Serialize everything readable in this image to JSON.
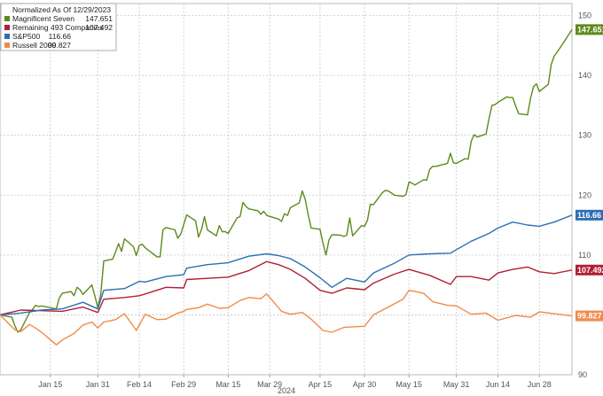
{
  "chart_data": {
    "type": "line",
    "legend": {
      "title": "Normalized As Of 12/29/2023",
      "placement": "top-left",
      "entries": [
        {
          "name": "Magnificent Seven",
          "value": "147.651"
        },
        {
          "name": "Remaining 493 Companies",
          "value": "107.492"
        },
        {
          "name": "S&P500",
          "value": "116.66"
        },
        {
          "name": "Russell 2000",
          "value": "99.827"
        }
      ]
    },
    "xlabel": "2024",
    "x_tick_labels": [
      "Jan 15",
      "Jan 31",
      "Feb 14",
      "Feb 29",
      "Mar 15",
      "Mar 29",
      "Apr 15",
      "Apr 30",
      "May 15",
      "May 31",
      "Jun 14",
      "Jun 28"
    ],
    "xlim": [
      "2023-12-29",
      "2024-07-09"
    ],
    "ylim": [
      90,
      152
    ],
    "y_ticks": [
      90,
      100,
      110,
      120,
      130,
      140,
      150
    ],
    "y_axis_side": "right",
    "grid": true,
    "series": [
      {
        "name": "Magnificent Seven",
        "color": "#5d8a1c",
        "end_label": "147.651",
        "points": [
          [
            "2023-12-29",
            100
          ],
          [
            "2024-01-02",
            99.6
          ],
          [
            "2024-01-03",
            98.2
          ],
          [
            "2024-01-04",
            97.1
          ],
          [
            "2024-01-05",
            97.5
          ],
          [
            "2024-01-08",
            100.4
          ],
          [
            "2024-01-09",
            100.9
          ],
          [
            "2024-01-10",
            101.6
          ],
          [
            "2024-01-11",
            101.4
          ],
          [
            "2024-01-12",
            101.5
          ],
          [
            "2024-01-16",
            101.1
          ],
          [
            "2024-01-17",
            101.0
          ],
          [
            "2024-01-18",
            102.8
          ],
          [
            "2024-01-19",
            103.6
          ],
          [
            "2024-01-22",
            103.9
          ],
          [
            "2024-01-23",
            103.2
          ],
          [
            "2024-01-24",
            104.6
          ],
          [
            "2024-01-25",
            104.2
          ],
          [
            "2024-01-26",
            103.4
          ],
          [
            "2024-01-29",
            105.0
          ],
          [
            "2024-01-30",
            103.2
          ],
          [
            "2024-01-31",
            101.2
          ],
          [
            "2024-02-01",
            103.4
          ],
          [
            "2024-02-02",
            109.0
          ],
          [
            "2024-02-05",
            109.3
          ],
          [
            "2024-02-06",
            110.5
          ],
          [
            "2024-02-07",
            111.9
          ],
          [
            "2024-02-08",
            110.6
          ],
          [
            "2024-02-09",
            112.7
          ],
          [
            "2024-02-12",
            111.4
          ],
          [
            "2024-02-13",
            109.9
          ],
          [
            "2024-02-14",
            111.6
          ],
          [
            "2024-02-15",
            111.8
          ],
          [
            "2024-02-16",
            111.2
          ],
          [
            "2024-02-20",
            109.7
          ],
          [
            "2024-02-21",
            109.7
          ],
          [
            "2024-02-22",
            114.2
          ],
          [
            "2024-02-23",
            114.6
          ],
          [
            "2024-02-26",
            114.2
          ],
          [
            "2024-02-27",
            112.8
          ],
          [
            "2024-02-28",
            113.5
          ],
          [
            "2024-02-29",
            115.1
          ],
          [
            "2024-03-01",
            116.7
          ],
          [
            "2024-03-04",
            115.7
          ],
          [
            "2024-03-05",
            113.0
          ],
          [
            "2024-03-06",
            114.3
          ],
          [
            "2024-03-07",
            116.4
          ],
          [
            "2024-03-08",
            114.2
          ],
          [
            "2024-03-11",
            113.2
          ],
          [
            "2024-03-12",
            114.9
          ],
          [
            "2024-03-13",
            113.9
          ],
          [
            "2024-03-14",
            113.9
          ],
          [
            "2024-03-15",
            113.6
          ],
          [
            "2024-03-18",
            116.2
          ],
          [
            "2024-03-19",
            116.4
          ],
          [
            "2024-03-20",
            118.8
          ],
          [
            "2024-03-21",
            118.1
          ],
          [
            "2024-03-22",
            117.7
          ],
          [
            "2024-03-25",
            117.4
          ],
          [
            "2024-03-26",
            116.8
          ],
          [
            "2024-03-27",
            117.3
          ],
          [
            "2024-03-28",
            116.6
          ],
          [
            "2024-04-01",
            116.0
          ],
          [
            "2024-04-02",
            115.6
          ],
          [
            "2024-04-03",
            116.9
          ],
          [
            "2024-04-04",
            116.6
          ],
          [
            "2024-04-05",
            117.9
          ],
          [
            "2024-04-08",
            118.7
          ],
          [
            "2024-04-09",
            120.7
          ],
          [
            "2024-04-10",
            119.3
          ],
          [
            "2024-04-11",
            116.7
          ],
          [
            "2024-04-12",
            114.5
          ],
          [
            "2024-04-15",
            114.3
          ],
          [
            "2024-04-16",
            111.9
          ],
          [
            "2024-04-17",
            110.0
          ],
          [
            "2024-04-18",
            112.5
          ],
          [
            "2024-04-19",
            113.4
          ],
          [
            "2024-04-22",
            113.3
          ],
          [
            "2024-04-23",
            113.1
          ],
          [
            "2024-04-24",
            113.3
          ],
          [
            "2024-04-25",
            116.2
          ],
          [
            "2024-04-26",
            113.2
          ],
          [
            "2024-04-29",
            114.9
          ],
          [
            "2024-04-30",
            114.8
          ],
          [
            "2024-05-01",
            115.8
          ],
          [
            "2024-05-02",
            118.5
          ],
          [
            "2024-05-03",
            118.4
          ],
          [
            "2024-05-06",
            120.4
          ],
          [
            "2024-05-07",
            120.8
          ],
          [
            "2024-05-08",
            120.7
          ],
          [
            "2024-05-09",
            120.4
          ],
          [
            "2024-05-10",
            120.0
          ],
          [
            "2024-05-13",
            119.8
          ],
          [
            "2024-05-14",
            120.1
          ],
          [
            "2024-05-15",
            122.2
          ],
          [
            "2024-05-16",
            122.0
          ],
          [
            "2024-05-17",
            121.7
          ],
          [
            "2024-05-20",
            122.6
          ],
          [
            "2024-05-21",
            122.5
          ],
          [
            "2024-05-22",
            124.3
          ],
          [
            "2024-05-23",
            124.8
          ],
          [
            "2024-05-24",
            124.8
          ],
          [
            "2024-05-28",
            125.3
          ],
          [
            "2024-05-29",
            127.0
          ],
          [
            "2024-05-30",
            125.4
          ],
          [
            "2024-05-31",
            125.3
          ],
          [
            "2024-06-03",
            126.1
          ],
          [
            "2024-06-04",
            126.0
          ],
          [
            "2024-06-05",
            129.0
          ],
          [
            "2024-06-06",
            130.1
          ],
          [
            "2024-06-07",
            129.7
          ],
          [
            "2024-06-10",
            130.2
          ],
          [
            "2024-06-11",
            132.7
          ],
          [
            "2024-06-12",
            135.0
          ],
          [
            "2024-06-13",
            135.1
          ],
          [
            "2024-06-14",
            135.5
          ],
          [
            "2024-06-17",
            136.4
          ],
          [
            "2024-06-18",
            136.3
          ],
          [
            "2024-06-19",
            136.3
          ],
          [
            "2024-06-20",
            134.9
          ],
          [
            "2024-06-21",
            133.6
          ],
          [
            "2024-06-24",
            133.4
          ],
          [
            "2024-06-25",
            136.1
          ],
          [
            "2024-06-26",
            138.1
          ],
          [
            "2024-06-27",
            138.6
          ],
          [
            "2024-06-28",
            137.3
          ],
          [
            "2024-07-01",
            138.5
          ],
          [
            "2024-07-02",
            141.8
          ],
          [
            "2024-07-03",
            143.2
          ],
          [
            "2024-07-05",
            144.6
          ],
          [
            "2024-07-08",
            146.9
          ],
          [
            "2024-07-09",
            147.651
          ]
        ]
      },
      {
        "name": "Remaining 493 Companies",
        "color": "#b01f35",
        "end_label": "107.492",
        "points": [
          [
            "2023-12-29",
            100
          ],
          [
            "2024-01-05",
            100.8
          ],
          [
            "2024-01-12",
            100.7
          ],
          [
            "2024-01-19",
            100.6
          ],
          [
            "2024-01-26",
            101.3
          ],
          [
            "2024-01-31",
            100.4
          ],
          [
            "2024-02-02",
            102.6
          ],
          [
            "2024-02-09",
            102.9
          ],
          [
            "2024-02-14",
            103.2
          ],
          [
            "2024-02-16",
            103.5
          ],
          [
            "2024-02-23",
            104.6
          ],
          [
            "2024-02-29",
            104.5
          ],
          [
            "2024-03-01",
            105.9
          ],
          [
            "2024-03-08",
            106.1
          ],
          [
            "2024-03-15",
            106.3
          ],
          [
            "2024-03-22",
            107.4
          ],
          [
            "2024-03-28",
            108.9
          ],
          [
            "2024-04-01",
            108.4
          ],
          [
            "2024-04-05",
            107.6
          ],
          [
            "2024-04-10",
            106.1
          ],
          [
            "2024-04-15",
            104.1
          ],
          [
            "2024-04-19",
            103.6
          ],
          [
            "2024-04-24",
            104.5
          ],
          [
            "2024-04-30",
            104.2
          ],
          [
            "2024-05-03",
            105.3
          ],
          [
            "2024-05-10",
            106.8
          ],
          [
            "2024-05-15",
            107.6
          ],
          [
            "2024-05-22",
            106.6
          ],
          [
            "2024-05-29",
            105.1
          ],
          [
            "2024-05-31",
            106.4
          ],
          [
            "2024-06-05",
            106.4
          ],
          [
            "2024-06-11",
            105.8
          ],
          [
            "2024-06-14",
            107.0
          ],
          [
            "2024-06-19",
            107.6
          ],
          [
            "2024-06-24",
            108.0
          ],
          [
            "2024-06-28",
            107.2
          ],
          [
            "2024-07-03",
            106.9
          ],
          [
            "2024-07-09",
            107.492
          ]
        ]
      },
      {
        "name": "S&P500",
        "color": "#2e6fb3",
        "end_label": "116.66",
        "points": [
          [
            "2023-12-29",
            100
          ],
          [
            "2024-01-05",
            100.3
          ],
          [
            "2024-01-12",
            100.8
          ],
          [
            "2024-01-19",
            101.0
          ],
          [
            "2024-01-26",
            102.1
          ],
          [
            "2024-01-31",
            101.0
          ],
          [
            "2024-02-02",
            104.1
          ],
          [
            "2024-02-09",
            104.4
          ],
          [
            "2024-02-14",
            105.6
          ],
          [
            "2024-02-16",
            105.5
          ],
          [
            "2024-02-23",
            106.4
          ],
          [
            "2024-02-29",
            106.7
          ],
          [
            "2024-03-01",
            107.8
          ],
          [
            "2024-03-08",
            108.4
          ],
          [
            "2024-03-15",
            108.7
          ],
          [
            "2024-03-22",
            109.8
          ],
          [
            "2024-03-28",
            110.2
          ],
          [
            "2024-04-01",
            109.9
          ],
          [
            "2024-04-05",
            109.4
          ],
          [
            "2024-04-10",
            108.0
          ],
          [
            "2024-04-15",
            106.2
          ],
          [
            "2024-04-19",
            104.6
          ],
          [
            "2024-04-24",
            106.1
          ],
          [
            "2024-04-30",
            105.5
          ],
          [
            "2024-05-03",
            107.0
          ],
          [
            "2024-05-10",
            108.6
          ],
          [
            "2024-05-15",
            110.0
          ],
          [
            "2024-05-22",
            110.2
          ],
          [
            "2024-05-29",
            110.3
          ],
          [
            "2024-05-31",
            110.9
          ],
          [
            "2024-06-05",
            112.3
          ],
          [
            "2024-06-11",
            113.6
          ],
          [
            "2024-06-14",
            114.5
          ],
          [
            "2024-06-19",
            115.5
          ],
          [
            "2024-06-24",
            115.0
          ],
          [
            "2024-06-28",
            114.8
          ],
          [
            "2024-07-03",
            115.5
          ],
          [
            "2024-07-09",
            116.66
          ]
        ]
      },
      {
        "name": "Russell 2000",
        "color": "#f08a4b",
        "end_label": "99.827",
        "points": [
          [
            "2023-12-29",
            100
          ],
          [
            "2024-01-03",
            97.5
          ],
          [
            "2024-01-05",
            97.2
          ],
          [
            "2024-01-08",
            98.4
          ],
          [
            "2024-01-10",
            97.8
          ],
          [
            "2024-01-12",
            97.1
          ],
          [
            "2024-01-17",
            95.0
          ],
          [
            "2024-01-19",
            95.8
          ],
          [
            "2024-01-23",
            96.9
          ],
          [
            "2024-01-26",
            98.3
          ],
          [
            "2024-01-29",
            98.8
          ],
          [
            "2024-01-31",
            97.8
          ],
          [
            "2024-02-02",
            98.8
          ],
          [
            "2024-02-06",
            99.2
          ],
          [
            "2024-02-09",
            100.2
          ],
          [
            "2024-02-13",
            97.4
          ],
          [
            "2024-02-16",
            100.1
          ],
          [
            "2024-02-20",
            99.2
          ],
          [
            "2024-02-23",
            99.3
          ],
          [
            "2024-02-27",
            100.3
          ],
          [
            "2024-02-29",
            100.6
          ],
          [
            "2024-03-01",
            100.9
          ],
          [
            "2024-03-05",
            101.2
          ],
          [
            "2024-03-08",
            101.8
          ],
          [
            "2024-03-12",
            101.1
          ],
          [
            "2024-03-15",
            101.2
          ],
          [
            "2024-03-19",
            102.4
          ],
          [
            "2024-03-22",
            102.9
          ],
          [
            "2024-03-26",
            102.7
          ],
          [
            "2024-03-28",
            103.5
          ],
          [
            "2024-04-02",
            100.6
          ],
          [
            "2024-04-05",
            100.1
          ],
          [
            "2024-04-09",
            100.4
          ],
          [
            "2024-04-12",
            99.3
          ],
          [
            "2024-04-16",
            97.4
          ],
          [
            "2024-04-19",
            97.1
          ],
          [
            "2024-04-23",
            97.9
          ],
          [
            "2024-04-26",
            98.0
          ],
          [
            "2024-04-30",
            98.1
          ],
          [
            "2024-05-03",
            100.0
          ],
          [
            "2024-05-08",
            101.3
          ],
          [
            "2024-05-13",
            102.6
          ],
          [
            "2024-05-15",
            104.1
          ],
          [
            "2024-05-20",
            103.6
          ],
          [
            "2024-05-23",
            102.2
          ],
          [
            "2024-05-28",
            101.6
          ],
          [
            "2024-05-31",
            101.5
          ],
          [
            "2024-06-05",
            100.1
          ],
          [
            "2024-06-10",
            100.3
          ],
          [
            "2024-06-14",
            99.1
          ],
          [
            "2024-06-20",
            99.9
          ],
          [
            "2024-06-25",
            99.6
          ],
          [
            "2024-06-28",
            100.5
          ],
          [
            "2024-07-03",
            100.2
          ],
          [
            "2024-07-09",
            99.827
          ]
        ]
      }
    ]
  }
}
